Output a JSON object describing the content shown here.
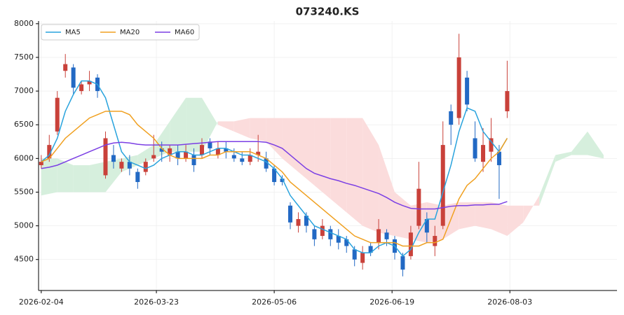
{
  "chart_data": {
    "type": "candlestick",
    "title": "073240.KS",
    "x": [
      0,
      3,
      6,
      9,
      12,
      15,
      18,
      21,
      24,
      27,
      30,
      33,
      36,
      39,
      42,
      45,
      48,
      51,
      54,
      57,
      60,
      63,
      66,
      69,
      72,
      75,
      78,
      81,
      84,
      87,
      90,
      93,
      96,
      99,
      102,
      105,
      108,
      111,
      114,
      117,
      120,
      123,
      126,
      129,
      132,
      135,
      138,
      141,
      144,
      147,
      150,
      153,
      156,
      159,
      162,
      165,
      168,
      171,
      174
    ],
    "open": [
      5900,
      6000,
      6400,
      7300,
      7350,
      7000,
      7100,
      7200,
      5750,
      6050,
      5850,
      5950,
      5800,
      5800,
      6000,
      6150,
      6050,
      6100,
      6000,
      6050,
      6050,
      6250,
      6050,
      6150,
      6050,
      6000,
      5950,
      6050,
      6000,
      5850,
      5700,
      5300,
      5000,
      5150,
      4950,
      4850,
      4950,
      4850,
      4800,
      4650,
      4450,
      4700,
      4750,
      4900,
      4800,
      4550,
      4550,
      5000,
      5100,
      4700,
      5000,
      6700,
      6600,
      7200,
      6300,
      5950,
      6100,
      6100,
      6700
    ],
    "high": [
      6050,
      6350,
      7000,
      7550,
      7400,
      7150,
      7300,
      7250,
      6400,
      6200,
      6000,
      6050,
      5850,
      6000,
      6350,
      6250,
      6200,
      6200,
      6200,
      6150,
      6300,
      6300,
      6250,
      6250,
      6150,
      6100,
      6150,
      6350,
      6100,
      5900,
      5750,
      5350,
      5200,
      5200,
      5000,
      5100,
      5000,
      4950,
      4850,
      4700,
      4700,
      4750,
      5100,
      4950,
      4850,
      4600,
      5000,
      5950,
      5200,
      5000,
      6550,
      6800,
      7850,
      7300,
      6550,
      6450,
      6600,
      6200,
      7450
    ],
    "low": [
      5850,
      5950,
      6350,
      7200,
      6950,
      6950,
      7000,
      6900,
      5700,
      5850,
      5800,
      5750,
      5550,
      5750,
      5950,
      5950,
      5950,
      5900,
      5950,
      5800,
      6000,
      6050,
      6000,
      6000,
      5950,
      5900,
      5900,
      5950,
      5800,
      5600,
      5600,
      4950,
      4900,
      4900,
      4700,
      4800,
      4700,
      4650,
      4600,
      4400,
      4350,
      4550,
      4650,
      4700,
      4500,
      4250,
      4500,
      4950,
      4750,
      4550,
      4950,
      6200,
      6500,
      6700,
      5950,
      5800,
      5950,
      5400,
      6600
    ],
    "close": [
      5950,
      6200,
      6900,
      7400,
      7050,
      7100,
      7150,
      7000,
      6300,
      5950,
      5950,
      5850,
      5650,
      5950,
      6050,
      6100,
      6150,
      6000,
      6100,
      5900,
      6200,
      6150,
      6150,
      6100,
      6000,
      5950,
      6050,
      6100,
      5850,
      5650,
      5650,
      5050,
      5100,
      5000,
      4800,
      5000,
      4800,
      4750,
      4700,
      4500,
      4600,
      4600,
      4950,
      4800,
      4600,
      4350,
      4900,
      5550,
      4900,
      4850,
      6200,
      6500,
      7500,
      6800,
      6000,
      6200,
      6300,
      5900,
      7000
    ],
    "up_color": "#c9413a",
    "down_color": "#2269c4",
    "series": [
      {
        "name": "MA5",
        "color": "#29a3dd",
        "values": [
          5950,
          6050,
          6300,
          6700,
          6950,
          7150,
          7150,
          7100,
          6900,
          6500,
          6100,
          5950,
          5900,
          5850,
          5900,
          6000,
          6050,
          6100,
          6100,
          6050,
          6050,
          6100,
          6150,
          6150,
          6100,
          6050,
          6050,
          6000,
          5950,
          5850,
          5700,
          5450,
          5300,
          5150,
          5000,
          4950,
          4900,
          4850,
          4800,
          4650,
          4600,
          4600,
          4700,
          4750,
          4700,
          4550,
          4650,
          4900,
          5100,
          5100,
          5500,
          5900,
          6400,
          6750,
          6700,
          6400,
          6250,
          6100,
          6300
        ]
      },
      {
        "name": "MA20",
        "color": "#f0a020",
        "values": [
          5950,
          6000,
          6150,
          6300,
          6400,
          6500,
          6600,
          6650,
          6700,
          6700,
          6700,
          6650,
          6500,
          6400,
          6300,
          6150,
          6050,
          6000,
          6000,
          6000,
          6000,
          6050,
          6050,
          6100,
          6100,
          6100,
          6100,
          6050,
          6000,
          5900,
          5800,
          5650,
          5550,
          5450,
          5350,
          5250,
          5150,
          5050,
          4950,
          4850,
          4800,
          4750,
          4750,
          4750,
          4750,
          4700,
          4700,
          4700,
          4750,
          4750,
          4800,
          5100,
          5400,
          5600,
          5700,
          5850,
          6000,
          6100,
          6300
        ]
      },
      {
        "name": "MA60",
        "color": "#7b3fe4",
        "values": [
          5850,
          5870,
          5900,
          5950,
          6000,
          6050,
          6100,
          6150,
          6200,
          6230,
          6240,
          6230,
          6210,
          6200,
          6200,
          6200,
          6200,
          6200,
          6210,
          6220,
          6230,
          6240,
          6250,
          6250,
          6250,
          6250,
          6250,
          6250,
          6240,
          6200,
          6150,
          6050,
          5950,
          5850,
          5780,
          5740,
          5700,
          5670,
          5630,
          5600,
          5560,
          5520,
          5480,
          5420,
          5350,
          5300,
          5260,
          5250,
          5250,
          5250,
          5270,
          5290,
          5300,
          5300,
          5310,
          5310,
          5320,
          5320,
          5360
        ]
      }
    ],
    "cloud": {
      "x": [
        0,
        6,
        12,
        18,
        24,
        30,
        36,
        42,
        48,
        54,
        60,
        66,
        72,
        78,
        84,
        90,
        96,
        102,
        108,
        114,
        120,
        126,
        132,
        138,
        144,
        150,
        156,
        162,
        168,
        174,
        180,
        186,
        192,
        198,
        204,
        210
      ],
      "span_a": [
        6000,
        6000,
        5900,
        5900,
        5950,
        6000,
        6050,
        6200,
        6550,
        6900,
        6900,
        6500,
        6400,
        6300,
        6250,
        6000,
        5800,
        5600,
        5400,
        5200,
        5000,
        4900,
        4850,
        4800,
        4750,
        4800,
        4950,
        5000,
        4950,
        4850,
        5050,
        5450,
        6050,
        6100,
        6400,
        6050
      ],
      "span_b": [
        5450,
        5500,
        5500,
        5500,
        5500,
        5800,
        5900,
        6000,
        6100,
        6100,
        6100,
        6550,
        6550,
        6600,
        6600,
        6600,
        6600,
        6600,
        6600,
        6600,
        6600,
        6200,
        5500,
        5300,
        5350,
        5300,
        5350,
        5350,
        5350,
        5300,
        5300,
        5300,
        5950,
        6050,
        6050,
        6000
      ],
      "up_color": "#d6efdd",
      "down_color": "#fbdcdc"
    },
    "xlim": [
      -1,
      215
    ],
    "xticks": [
      {
        "value": 0,
        "label": "2026-02-04"
      },
      {
        "value": 43,
        "label": "2026-03-23"
      },
      {
        "value": 87,
        "label": "2026-05-06"
      },
      {
        "value": 131,
        "label": "2026-06-19"
      },
      {
        "value": 175,
        "label": "2026-08-03"
      }
    ],
    "ylim": [
      4040,
      8040
    ],
    "yticks": [
      4500,
      5000,
      5500,
      6000,
      6500,
      7000,
      7500,
      8000
    ],
    "grid": true,
    "legend": "upper left"
  }
}
